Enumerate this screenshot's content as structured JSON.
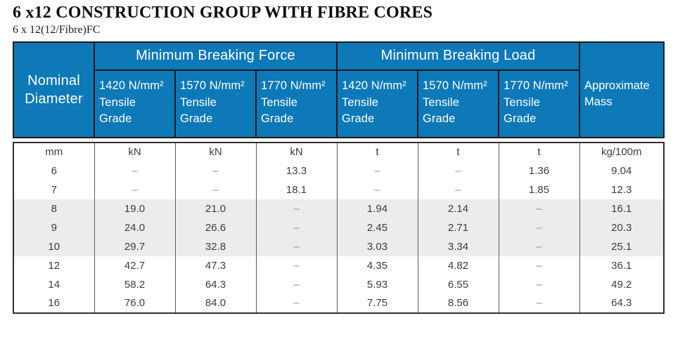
{
  "page": {
    "title": "6 x12 CONSTRUCTION GROUP WITH FIBRE CORES",
    "subtitle": "6 x 12(12/Fibre)FC"
  },
  "colors": {
    "header_bg": "#0d79b8",
    "header_text": "#ffffff",
    "shaded_row_bg": "#ececec",
    "border_dark": "#17191c",
    "body_text": "#3d3d3d",
    "dash_color": "#8f8f8f"
  },
  "table": {
    "header": {
      "nominal_diameter": "Nominal\nDiameter",
      "breaking_force": "Minimum Breaking Force",
      "breaking_load": "Minimum Breaking Load",
      "approximate_mass": "Approximate\nMass",
      "tensile_grades": [
        "1420 N/mm²\nTensile\nGrade",
        "1570 N/mm²\nTensile\nGrade",
        "1770 N/mm²\nTensile\nGrade",
        "1420 N/mm²\nTensile\nGrade",
        "1570 N/mm²\nTensile\nGrade",
        "1770 N/mm²\nTensile\nGrade"
      ]
    },
    "body_rows": [
      {
        "cells": [
          "mm",
          "kN",
          "kN",
          "kN",
          "t",
          "t",
          "t",
          "kg/100m"
        ],
        "shaded": false
      },
      {
        "cells": [
          "6",
          "–",
          "–",
          "13.3",
          "–",
          "–",
          "1.36",
          "9.04"
        ],
        "shaded": false
      },
      {
        "cells": [
          "7",
          "–",
          "–",
          "18.1",
          "–",
          "–",
          "1.85",
          "12.3"
        ],
        "shaded": false
      },
      {
        "cells": [
          "8",
          "19.0",
          "21.0",
          "–",
          "1.94",
          "2.14",
          "–",
          "16.1"
        ],
        "shaded": true
      },
      {
        "cells": [
          "9",
          "24.0",
          "26.6",
          "–",
          "2.45",
          "2.71",
          "–",
          "20.3"
        ],
        "shaded": true
      },
      {
        "cells": [
          "10",
          "29.7",
          "32.8",
          "–",
          "3.03",
          "3.34",
          "–",
          "25.1"
        ],
        "shaded": true
      },
      {
        "cells": [
          "12",
          "42.7",
          "47.3",
          "–",
          "4.35",
          "4.82",
          "–",
          "36.1"
        ],
        "shaded": false
      },
      {
        "cells": [
          "14",
          "58.2",
          "64.3",
          "–",
          "5.93",
          "6.55",
          "–",
          "49.2"
        ],
        "shaded": false
      },
      {
        "cells": [
          "16",
          "76.0",
          "84.0",
          "–",
          "7.75",
          "8.56",
          "–",
          "64.3"
        ],
        "shaded": false
      }
    ]
  }
}
